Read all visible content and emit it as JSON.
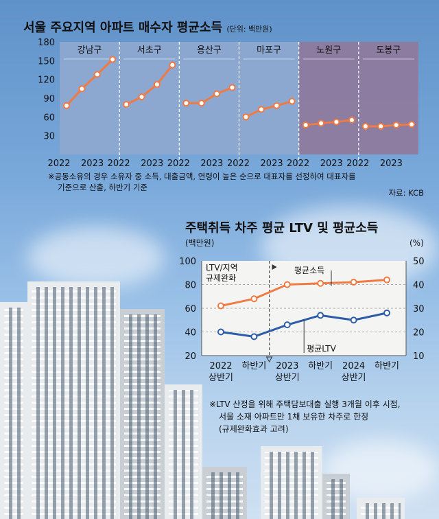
{
  "colors": {
    "orange": "#f07a44",
    "blue": "#2d5da8",
    "panel_blue": "#8fa8cf",
    "panel_purple": "#8f7a9c",
    "panel2_bg": "#f4f5f2"
  },
  "chart1": {
    "title": "서울 주요지역 아파트 매수자 평균소득",
    "unit": "(단위: 백만원)",
    "yticks": [
      "180",
      "150",
      "120",
      "90",
      "60",
      "30"
    ],
    "districts": [
      "강남구",
      "서초구",
      "용산구",
      "마포구",
      "노원구",
      "도봉구"
    ],
    "xtick_labels": [
      "2022",
      "2023"
    ],
    "note_line1": "※공동소유의 경우 소유자 중 소득, 대출금액, 연령이 높은 순으로 대표자를 선정하여 대표자를",
    "note_line2": "기준으로 산출, 하반기 기준",
    "source": "자료: KCB"
  },
  "chart2": {
    "title": "주택취득 차주 평균 LTV 및 평균소득",
    "left_unit": "(백만원)",
    "right_unit": "(%)",
    "left_ticks": [
      "100",
      "80",
      "60",
      "40",
      "20"
    ],
    "right_ticks": [
      "50",
      "40",
      "30",
      "20",
      "10"
    ],
    "x_top": [
      "2022",
      "하반기",
      "2023",
      "하반기",
      "2024",
      "하반기"
    ],
    "x_bottom": [
      "상반기",
      "",
      "상반기",
      "",
      "상반기",
      ""
    ],
    "annotation_line1": "LTV/지역",
    "annotation_line2": "규제완화",
    "label_income": "평균소득",
    "label_ltv": "평균LTV",
    "note_line1": "※LTV 산정을 위해 주택담보대출 실행 3개월 이후 시점,",
    "note_line2": "서울 소재 아파트만 1채 보유한 차주로 한정",
    "note_line3": "(규제완화효과 고려)"
  },
  "chart_data": [
    {
      "type": "line",
      "title": "서울 주요지역 아파트 매수자 평균소득",
      "ylabel": "(단위: 백만원)",
      "ylim": [
        0,
        180
      ],
      "panels": [
        {
          "name": "강남구",
          "x": [
            "2022 상",
            "2022 하",
            "2023 상",
            "2023 하"
          ],
          "values": [
            78,
            105,
            128,
            152
          ]
        },
        {
          "name": "서초구",
          "x": [
            "2022 상",
            "2022 하",
            "2023 상",
            "2023 하"
          ],
          "values": [
            80,
            92,
            112,
            143
          ]
        },
        {
          "name": "용산구",
          "x": [
            "2022 상",
            "2022 하",
            "2023 상",
            "2023 하"
          ],
          "values": [
            82,
            82,
            97,
            107
          ]
        },
        {
          "name": "마포구",
          "x": [
            "2022 상",
            "2022 하",
            "2023 상",
            "2023 하"
          ],
          "values": [
            60,
            72,
            78,
            85
          ]
        },
        {
          "name": "노원구",
          "x": [
            "2022 상",
            "2022 하",
            "2023 상",
            "2023 하"
          ],
          "values": [
            47,
            50,
            52,
            55
          ]
        },
        {
          "name": "도봉구",
          "x": [
            "2022 상",
            "2022 하",
            "2023 상",
            "2023 하"
          ],
          "values": [
            45,
            45,
            47,
            48
          ]
        }
      ]
    },
    {
      "type": "line",
      "title": "주택취득 차주 평균 LTV 및 평균소득",
      "categories": [
        "2022 상반기",
        "2022 하반기",
        "2023 상반기",
        "2023 하반기",
        "2024 상반기",
        "2024 하반기"
      ],
      "series": [
        {
          "name": "평균소득",
          "axis": "left",
          "values": [
            62,
            68,
            80,
            81,
            82,
            84
          ]
        },
        {
          "name": "평균LTV",
          "axis": "right",
          "values": [
            20,
            18,
            23,
            27,
            25,
            28
          ]
        }
      ],
      "ylim_left": [
        20,
        100
      ],
      "ylim_right": [
        10,
        50
      ]
    }
  ]
}
